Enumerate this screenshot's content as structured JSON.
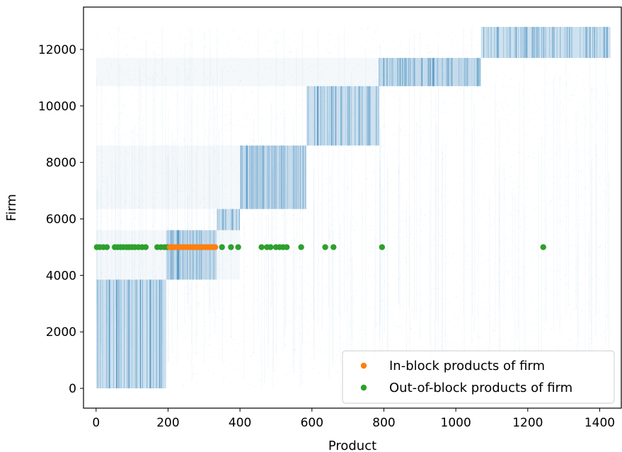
{
  "chart_data": {
    "type": "scatter",
    "title": "",
    "xlabel": "Product",
    "ylabel": "Firm",
    "xlim": [
      -35,
      1460
    ],
    "ylim": [
      -700,
      13500
    ],
    "x_ticks": [
      0,
      200,
      400,
      600,
      800,
      1000,
      1200,
      1400
    ],
    "y_ticks": [
      0,
      2000,
      4000,
      6000,
      8000,
      10000,
      12000
    ],
    "grid": false,
    "legend_position": "bottom-right",
    "colors": {
      "background_points": "#1f77b4",
      "in_block": "#ff7f0e",
      "out_of_block": "#2ca02c"
    },
    "background_scatter": {
      "description_points": "dense firm-product occurrence points",
      "blocks": [
        {
          "x": [
            0,
            195
          ],
          "y": [
            0,
            3850
          ]
        },
        {
          "x": [
            195,
            335
          ],
          "y": [
            3850,
            5600
          ]
        },
        {
          "x": [
            335,
            400
          ],
          "y": [
            5600,
            6350
          ]
        },
        {
          "x": [
            400,
            585
          ],
          "y": [
            6350,
            8600
          ]
        },
        {
          "x": [
            585,
            785
          ],
          "y": [
            8600,
            10700
          ]
        },
        {
          "x": [
            785,
            1070
          ],
          "y": [
            10700,
            11700
          ]
        },
        {
          "x": [
            1070,
            1430
          ],
          "y": [
            11700,
            12800
          ]
        }
      ]
    },
    "series": [
      {
        "name": "In-block products of firm",
        "y": 5000,
        "x": [
          205,
          212,
          219,
          226,
          233,
          240,
          247,
          254,
          261,
          268,
          275,
          282,
          289,
          296,
          303,
          310,
          317,
          324,
          331
        ]
      },
      {
        "name": "Out-of-block products of firm",
        "y": 5000,
        "x": [
          2,
          10,
          20,
          30,
          52,
          60,
          68,
          76,
          85,
          92,
          100,
          108,
          118,
          128,
          138,
          170,
          180,
          190,
          198,
          350,
          375,
          395,
          460,
          475,
          485,
          500,
          510,
          520,
          530,
          570,
          637,
          660,
          795,
          1243
        ]
      }
    ]
  }
}
